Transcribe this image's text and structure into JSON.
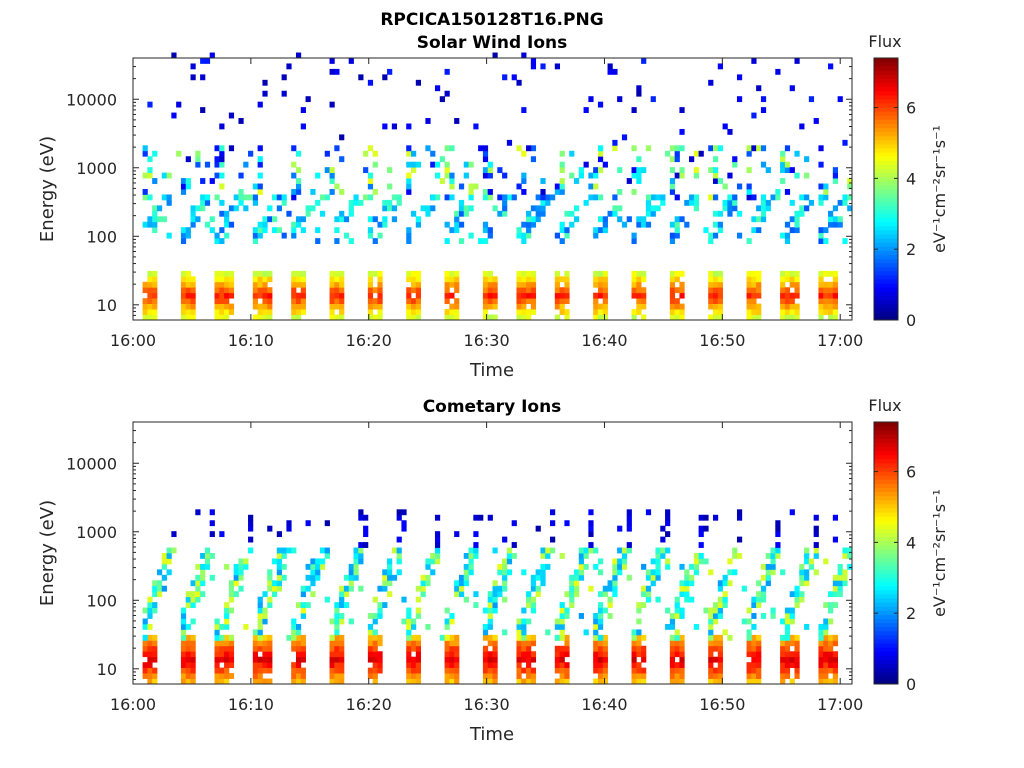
{
  "figure": {
    "title": "RPCICA150128T16.PNG"
  },
  "colorbar": {
    "title": "Flux",
    "label": "eV⁻¹cm⁻²sr⁻¹s⁻¹",
    "ticks": [
      "0",
      "2",
      "4",
      "6"
    ],
    "range": [
      0,
      7.4
    ],
    "colormap": "jet"
  },
  "chart_data": [
    {
      "type": "heatmap",
      "title": "Solar Wind Ions",
      "xlabel": "Time",
      "ylabel": "Energy (eV)",
      "xlim": [
        "16:00",
        "17:01"
      ],
      "ylim": [
        6,
        40000
      ],
      "yscale": "log",
      "xticks": [
        "16:00",
        "16:10",
        "16:20",
        "16:30",
        "16:40",
        "16:50",
        "17:00"
      ],
      "yticks": [
        "10",
        "100",
        "1000",
        "10000"
      ],
      "cycle_start_minutes": [
        0.5,
        3.7,
        6.9,
        10.1,
        13.3,
        16.5,
        19.7,
        22.9,
        26.1,
        29.3,
        32.5,
        35.7,
        38.9,
        42.1,
        45.3,
        48.5,
        51.7,
        54.9,
        58.1
      ],
      "bands": [
        {
          "energy_range": [
            7,
            28
          ],
          "flux_range": [
            3.5,
            6.5
          ],
          "description": "low-energy bursts each cycle"
        },
        {
          "energy_range": [
            80,
            400
          ],
          "flux_range": [
            1.5,
            3.5
          ],
          "description": "diagonal sweeps after each burst"
        },
        {
          "energy_range": [
            400,
            2000
          ],
          "flux_range": [
            0.5,
            4.5
          ],
          "description": "scattered counts near 1000 eV"
        },
        {
          "energy_range": [
            2000,
            40000
          ],
          "flux_range": [
            0.3,
            1.2
          ],
          "description": "sparse background counts"
        }
      ]
    },
    {
      "type": "heatmap",
      "title": "Cometary Ions",
      "xlabel": "Time",
      "ylabel": "Energy (eV)",
      "xlim": [
        "16:00",
        "17:01"
      ],
      "ylim": [
        6,
        40000
      ],
      "yscale": "log",
      "xticks": [
        "16:00",
        "16:10",
        "16:20",
        "16:30",
        "16:40",
        "16:50",
        "17:00"
      ],
      "yticks": [
        "10",
        "100",
        "1000",
        "10000"
      ],
      "cycle_start_minutes": [
        0.5,
        3.7,
        6.9,
        10.1,
        13.3,
        16.5,
        19.7,
        22.9,
        26.1,
        29.3,
        32.5,
        35.7,
        38.9,
        42.1,
        45.3,
        48.5,
        51.7,
        54.9,
        58.1
      ],
      "bands": [
        {
          "energy_range": [
            7,
            28
          ],
          "flux_range": [
            4.5,
            7.0
          ],
          "description": "intense low-energy bursts each cycle"
        },
        {
          "energy_range": [
            28,
            500
          ],
          "flux_range": [
            2.0,
            4.5
          ],
          "description": "diagonal sweeps rising after each burst"
        },
        {
          "energy_range": [
            700,
            2100
          ],
          "flux_range": [
            0.3,
            1.0
          ],
          "description": "isolated counts near 1500 eV"
        }
      ]
    }
  ]
}
